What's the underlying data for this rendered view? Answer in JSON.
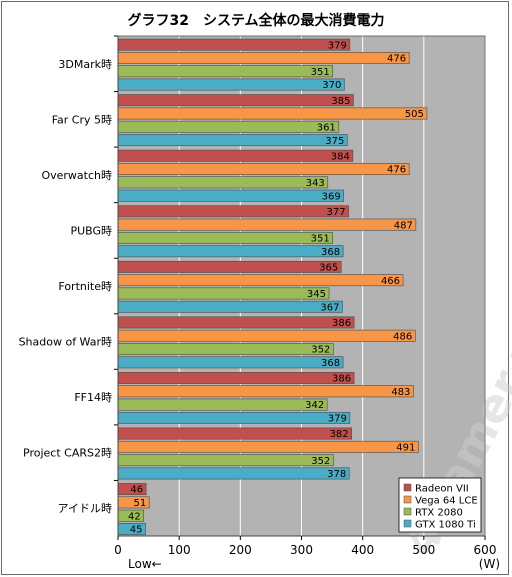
{
  "chart_data": {
    "type": "bar",
    "orientation": "horizontal",
    "title": "グラフ32　システム全体の最大消費電力",
    "categories": [
      "3DMark時",
      "Far Cry 5時",
      "Overwatch時",
      "PUBG時",
      "Fortnite時",
      "Shadow of War時",
      "FF14時",
      "Project CARS2時",
      "アイドル時"
    ],
    "series": [
      {
        "name": "Radeon VII",
        "color": "#c0504d",
        "values": [
          379,
          385,
          384,
          377,
          365,
          386,
          386,
          382,
          46
        ]
      },
      {
        "name": "Vega 64 LCE",
        "color": "#f79646",
        "values": [
          476,
          505,
          476,
          487,
          466,
          486,
          483,
          491,
          51
        ]
      },
      {
        "name": "RTX 2080",
        "color": "#9bbb59",
        "values": [
          351,
          361,
          343,
          351,
          345,
          352,
          342,
          352,
          42
        ]
      },
      {
        "name": "GTX 1080 Ti",
        "color": "#4bacc6",
        "values": [
          370,
          375,
          369,
          368,
          367,
          368,
          379,
          378,
          45
        ]
      }
    ],
    "xlim": [
      0,
      600
    ],
    "xticks": [
      0,
      100,
      200,
      300,
      400,
      500,
      600
    ],
    "x_unit": "(W)",
    "x_direction_label": "Low←",
    "grid": true,
    "legend_position": "bottom-right",
    "plot_background": "#b3b3b3",
    "watermark": "4Gamer.net"
  }
}
